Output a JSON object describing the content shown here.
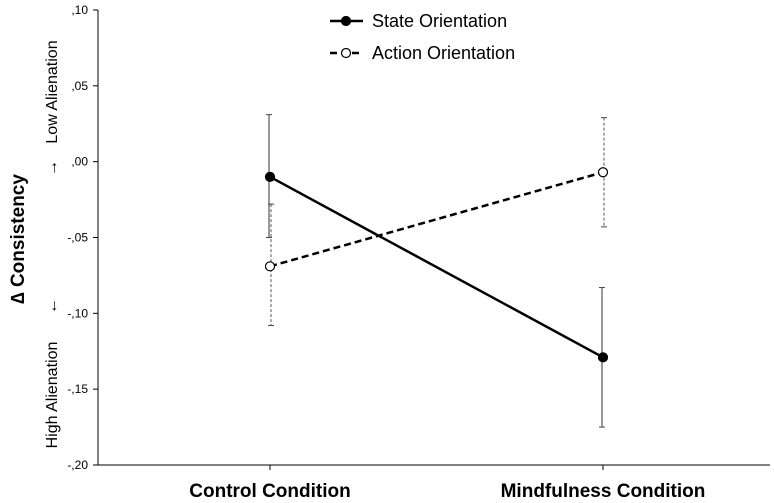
{
  "chart_data": {
    "type": "line",
    "categories": [
      "Control Condition",
      "Mindfulness Condition"
    ],
    "ylabel": "∆ Consistency",
    "ylabel_top": "Low Alienation",
    "ylabel_bottom": "High Alienation",
    "arrow_up": "→",
    "arrow_down": "←",
    "ylim": [
      -0.2,
      0.1
    ],
    "yticks": [
      0.1,
      0.05,
      0.0,
      -0.05,
      -0.1,
      -0.15,
      -0.2
    ],
    "ytick_labels": [
      ",10",
      ",05",
      ",00",
      "-,05",
      "-,10",
      "-,15",
      "-,20"
    ],
    "grid": false,
    "legend_position": "top-center",
    "series": [
      {
        "name": "State Orientation",
        "style": "solid",
        "marker": "filled-circle",
        "color": "#000000",
        "values": [
          -0.01,
          -0.129
        ],
        "error_low": [
          -0.05,
          -0.175
        ],
        "error_high": [
          0.031,
          -0.083
        ]
      },
      {
        "name": "Action Orientation",
        "style": "dashed",
        "marker": "open-circle",
        "color": "#000000",
        "values": [
          -0.069,
          -0.007
        ],
        "error_low": [
          -0.108,
          -0.043
        ],
        "error_high": [
          -0.028,
          0.029
        ]
      }
    ]
  }
}
